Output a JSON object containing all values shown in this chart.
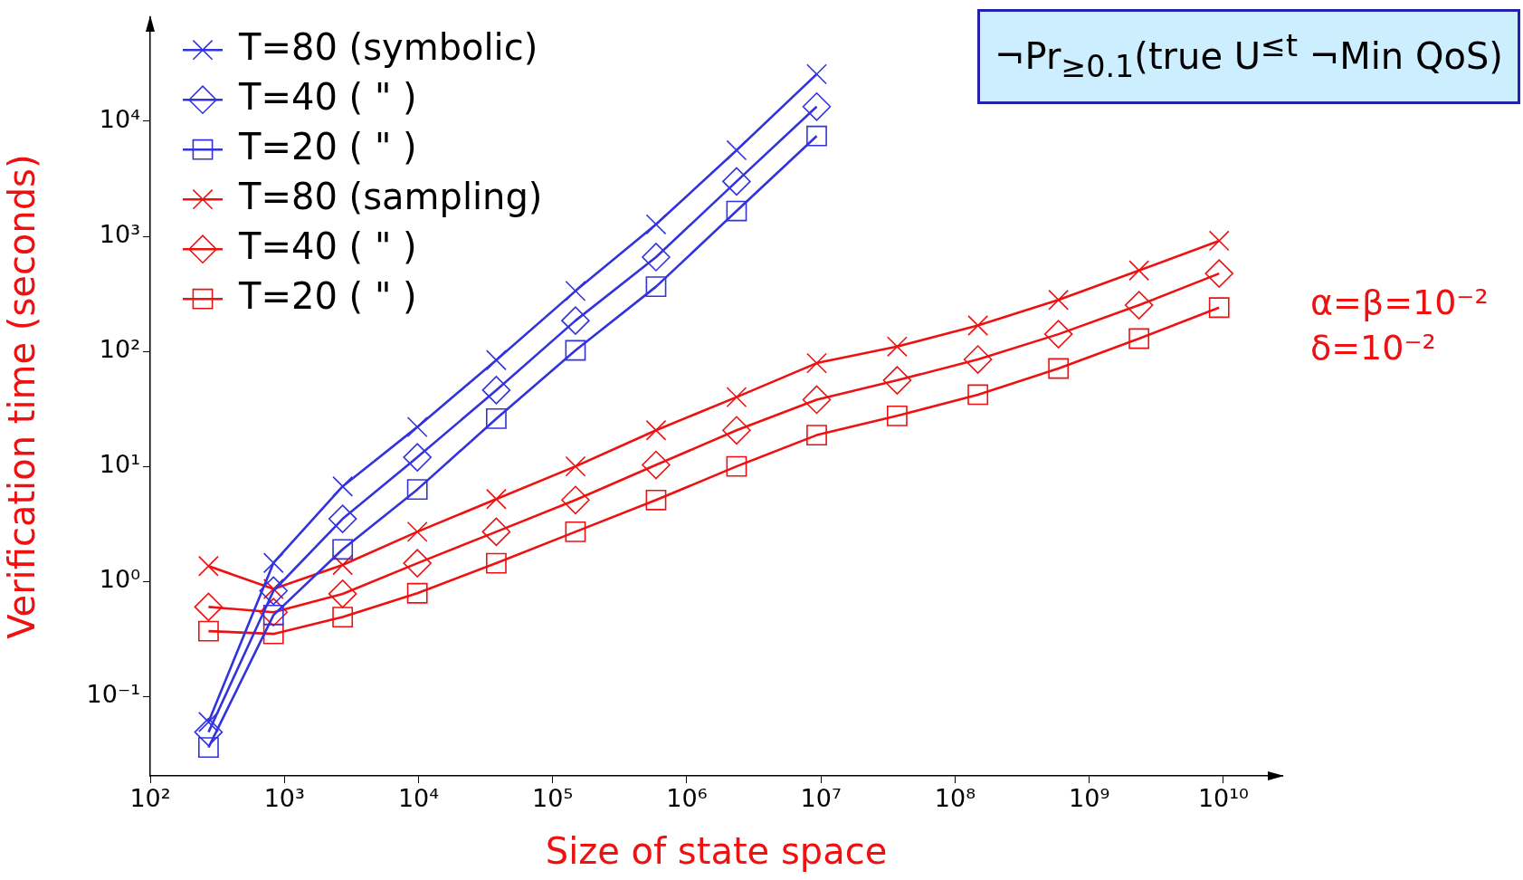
{
  "chart_data": {
    "type": "line",
    "xlabel": "Size of state space",
    "ylabel": "Verification time (seconds)",
    "log": "xy",
    "grid": false,
    "legend": "top left",
    "x": [
      272,
      830,
      2720,
      9800,
      38000,
      148000,
      590000,
      2350000,
      9300000,
      37000000,
      148000000,
      590000000,
      2350000000,
      9300000000
    ],
    "xlim": [
      100,
      27500000000
    ],
    "ylim": [
      0.0204,
      80000
    ],
    "xticks": [
      {
        "value": 100,
        "label": "10²"
      },
      {
        "value": 1000,
        "label": "10³"
      },
      {
        "value": 10000,
        "label": "10⁴"
      },
      {
        "value": 100000,
        "label": "10⁵"
      },
      {
        "value": 1000000,
        "label": "10⁶"
      },
      {
        "value": 10000000,
        "label": "10⁷"
      },
      {
        "value": 100000000,
        "label": "10⁸"
      },
      {
        "value": 1000000000,
        "label": "10⁹"
      },
      {
        "value": 10000000000,
        "label": "10¹⁰"
      }
    ],
    "yticks": [
      {
        "value": 0.1,
        "label": "10⁻¹"
      },
      {
        "value": 1,
        "label": "10⁰"
      },
      {
        "value": 10,
        "label": "10¹"
      },
      {
        "value": 100,
        "label": "10²"
      },
      {
        "value": 1000,
        "label": "10³"
      },
      {
        "value": 10000,
        "label": "10⁴"
      }
    ],
    "series": [
      {
        "name": "T=80 (symbolic)",
        "color": "#3333dd",
        "marker": "cross",
        "x": [
          272,
          830,
          2720,
          9800,
          38000,
          148000,
          590000,
          2350000,
          9300000
        ],
        "values": [
          0.06,
          1.45,
          6.7,
          22,
          84,
          335,
          1270,
          5600,
          25700
        ]
      },
      {
        "name": "T=40 ( \" )",
        "color": "#3333dd",
        "marker": "diamond",
        "x": [
          272,
          830,
          2720,
          9800,
          38000,
          148000,
          590000,
          2350000,
          9300000
        ],
        "values": [
          0.049,
          0.83,
          3.5,
          12,
          46,
          185,
          660,
          3000,
          13400
        ]
      },
      {
        "name": "T=20 ( \" )",
        "color": "#3333dd",
        "marker": "square",
        "x": [
          272,
          830,
          2720,
          9800,
          38000,
          148000,
          590000,
          2350000,
          9300000
        ],
        "values": [
          0.036,
          0.51,
          1.9,
          6.3,
          26,
          102,
          365,
          1660,
          7450
        ]
      },
      {
        "name": "T=80 (sampling)",
        "color": "#ee1111",
        "marker": "cross",
        "values": [
          1.36,
          0.86,
          1.39,
          2.7,
          5.2,
          10,
          20.6,
          40,
          79,
          110,
          168,
          280,
          505,
          915
        ]
      },
      {
        "name": "T=40 ( \" )",
        "color": "#ee1111",
        "marker": "diamond",
        "values": [
          0.6,
          0.54,
          0.78,
          1.44,
          2.7,
          5.1,
          10.3,
          20.6,
          38,
          56,
          85,
          141,
          252,
          475
        ]
      },
      {
        "name": "T=20 ( \" )",
        "color": "#ee1111",
        "marker": "square",
        "values": [
          0.37,
          0.35,
          0.49,
          0.79,
          1.44,
          2.7,
          5.1,
          10,
          18.7,
          27.5,
          42,
          71,
          129,
          240
        ]
      }
    ],
    "annotations": [
      "¬Pr$_{≥0.1}$(true U$^{≤t}$ ¬Min QoS)",
      "α=β=10⁻²",
      "δ=10⁻²"
    ]
  }
}
